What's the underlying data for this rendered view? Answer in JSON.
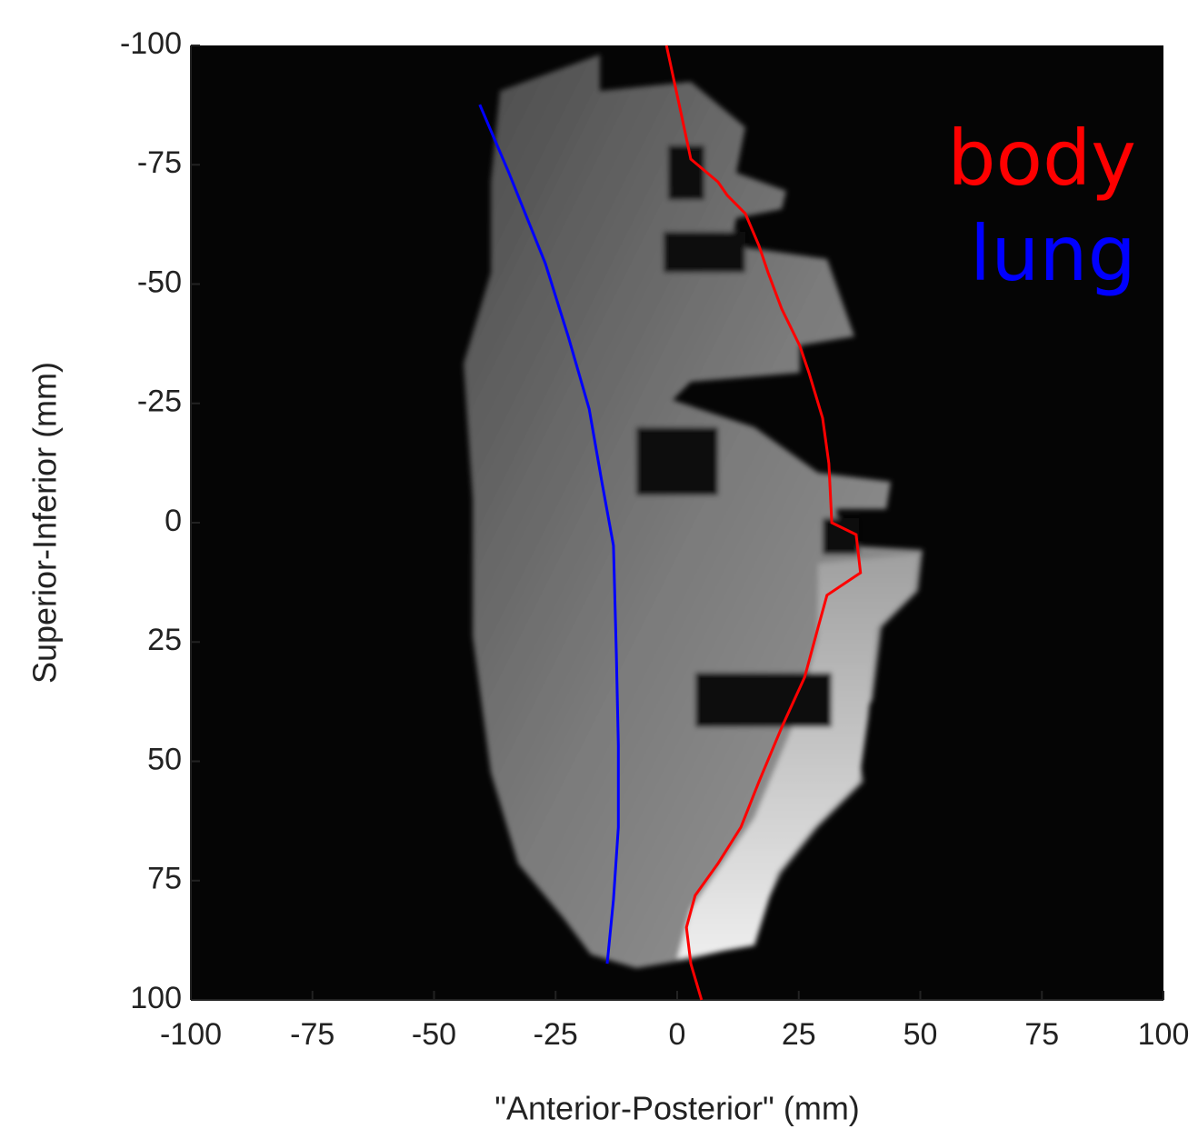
{
  "chart_data": {
    "type": "line",
    "x_label": "\"Anterior-Posterior\" (mm)",
    "y_label": "Superior-Inferior (mm)",
    "xlim": [
      -100,
      100
    ],
    "ylim": [
      100,
      -100
    ],
    "xticks": [
      -100,
      -75,
      -50,
      -25,
      0,
      25,
      50,
      75,
      100
    ],
    "yticks": [
      -100,
      -75,
      -50,
      -25,
      0,
      25,
      50,
      75,
      100
    ],
    "grid": false,
    "legend": "top-right",
    "series": [
      {
        "name": "body",
        "color": "#ff0000",
        "x": [
          -2.2,
          1.0,
          2.8,
          8.4,
          10.3,
          14.0,
          16.8,
          18.7,
          21.5,
          25.2,
          27.1,
          29.9,
          31.2,
          31.8,
          36.8,
          37.7,
          30.8,
          29.0,
          26.2,
          21.5,
          16.8,
          13.1,
          8.4,
          3.7,
          1.9,
          2.8,
          5.0
        ],
        "values": [
          -100,
          -84.8,
          -76.2,
          -71.4,
          -68.6,
          -64.8,
          -58.1,
          -52.4,
          -44.8,
          -37.1,
          -31.4,
          -21.9,
          -12.4,
          0,
          2.5,
          10.5,
          15.2,
          21.9,
          32.4,
          42.9,
          54.3,
          63.8,
          71.4,
          78.1,
          84.8,
          92.4,
          100
        ]
      },
      {
        "name": "lung",
        "color": "#0000ff",
        "x": [
          -40.6,
          -34.6,
          -27.1,
          -22.4,
          -18.1,
          -15.5,
          -13.1,
          -12.5,
          -12.1,
          -12.1,
          -13.1,
          -14.4
        ],
        "values": [
          -87.6,
          -73.3,
          -54.3,
          -39.0,
          -23.8,
          -8.6,
          4.8,
          27.6,
          46.7,
          63.8,
          79.0,
          92.4
        ]
      }
    ]
  }
}
